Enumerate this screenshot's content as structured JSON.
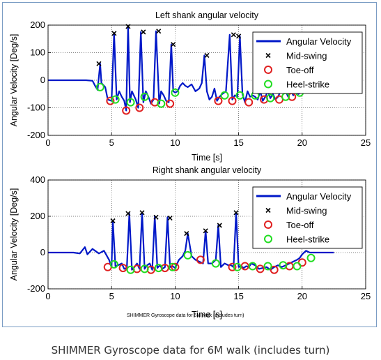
{
  "caption": "SHIMMER Gyroscope data for 6M walk (includes turn)",
  "inner_caption": "SHIMMER Gyroscope data for 6M walk (includes turn)",
  "colors": {
    "line": "#0018c8",
    "midswing": "#000000",
    "toeoff": "#e02020",
    "heelstrike": "#20dd20"
  },
  "chart_data": [
    {
      "type": "line",
      "title": "Left shank angular velocity",
      "xlabel": "Time [s]",
      "ylabel": "Angular Velocity [Deg/s]",
      "xlim": [
        0,
        25
      ],
      "ylim": [
        -200,
        200
      ],
      "xticks": [
        "0",
        "5",
        "10",
        "15",
        "20",
        "25"
      ],
      "yticks": [
        "200",
        "100",
        "0",
        "-100",
        "-200"
      ],
      "xtick_values": [
        0,
        5,
        10,
        15,
        20,
        25
      ],
      "ytick_values": [
        200,
        100,
        0,
        -100,
        -200
      ],
      "grid": true,
      "legend_position": "top-right",
      "legend": [
        "Angular Velocity",
        "Mid-swing",
        "Toe-off",
        "Heel-strike"
      ],
      "series": [
        {
          "name": "Angular Velocity",
          "type": "line",
          "x": [
            0,
            1,
            2,
            3,
            3.5,
            3.7,
            3.9,
            4.1,
            4.2,
            4.5,
            4.7,
            5.0,
            5.2,
            5.4,
            5.6,
            5.8,
            6.0,
            6.15,
            6.3,
            6.45,
            6.6,
            6.9,
            7.1,
            7.3,
            7.5,
            7.7,
            7.9,
            8.1,
            8.3,
            8.5,
            8.75,
            8.9,
            9.1,
            9.3,
            9.5,
            9.7,
            9.85,
            10.0,
            10.2,
            10.4,
            10.6,
            10.8,
            11.0,
            11.3,
            11.6,
            11.9,
            12.1,
            12.3,
            12.5,
            12.7,
            12.9,
            13.1,
            13.3,
            13.5,
            13.7,
            14.0,
            14.3,
            14.5,
            14.7,
            14.9,
            15.1,
            15.3,
            15.5,
            15.7,
            15.9,
            16.1,
            16.3,
            16.5,
            16.7,
            16.9,
            17.1,
            17.3,
            17.5,
            17.7,
            17.9,
            18.1,
            18.3,
            18.5,
            18.7,
            18.9,
            19.1,
            19.3,
            19.5,
            19.7,
            19.9,
            20.1,
            20.5,
            21.0
          ],
          "y": [
            0,
            0,
            0,
            0,
            -2,
            -20,
            -35,
            60,
            -10,
            -25,
            -70,
            -75,
            170,
            -70,
            -40,
            -60,
            -75,
            -110,
            195,
            -80,
            -40,
            -70,
            -100,
            175,
            -80,
            -40,
            -60,
            -85,
            -70,
            178,
            -85,
            -40,
            -55,
            -75,
            -80,
            130,
            -40,
            -45,
            -40,
            -20,
            -10,
            -20,
            -25,
            -15,
            -40,
            -30,
            -10,
            90,
            -40,
            -70,
            -60,
            -30,
            -75,
            -60,
            -50,
            -40,
            165,
            -70,
            -55,
            -60,
            160,
            -50,
            -80,
            -40,
            -60,
            -55,
            -60,
            -70,
            -40,
            -75,
            -60,
            -40,
            -65,
            -50,
            -70,
            -60,
            -40,
            -45,
            -40,
            -60,
            -35,
            -55,
            -40,
            -50,
            -45,
            -40,
            -10,
            0
          ]
        },
        {
          "name": "Mid-swing",
          "type": "marker",
          "marker": "x",
          "x": [
            4.0,
            5.2,
            6.3,
            7.5,
            8.7,
            9.85,
            12.5,
            14.6,
            15.0
          ],
          "y": [
            60,
            170,
            195,
            175,
            178,
            130,
            90,
            165,
            160
          ]
        },
        {
          "name": "Toe-off",
          "type": "marker",
          "marker": "circle",
          "x": [
            4.9,
            6.15,
            7.2,
            8.4,
            9.6,
            13.4,
            14.5,
            15.8,
            17.0,
            18.2,
            19.2
          ],
          "y": [
            -75,
            -110,
            -100,
            -80,
            -85,
            -75,
            -75,
            -80,
            -70,
            -70,
            -60
          ]
        },
        {
          "name": "Heel-strike",
          "type": "marker",
          "marker": "circle",
          "x": [
            4.1,
            5.3,
            6.5,
            7.6,
            8.9,
            10.0,
            13.9,
            15.1,
            16.3,
            17.5,
            18.7,
            19.8
          ],
          "y": [
            -25,
            -70,
            -80,
            -60,
            -85,
            -45,
            -55,
            -55,
            -55,
            -65,
            -60,
            -45
          ]
        }
      ]
    },
    {
      "type": "line",
      "title": "Right shank angular velocity",
      "xlabel": "Time [s]",
      "ylabel": "Angular Velocity [Deg/s]",
      "xlim": [
        0,
        25
      ],
      "ylim": [
        -200,
        400
      ],
      "xticks": [
        "0",
        "5",
        "10",
        "15",
        "20",
        "25"
      ],
      "yticks": [
        "400",
        "200",
        "0",
        "-200"
      ],
      "xtick_values": [
        0,
        5,
        10,
        15,
        20,
        25
      ],
      "ytick_values": [
        400,
        200,
        0,
        -200
      ],
      "grid": true,
      "legend_position": "top-right",
      "legend": [
        "Angular Velocity",
        "Mid-swing",
        "Toe-off",
        "Heel-strike"
      ],
      "series": [
        {
          "name": "Angular Velocity",
          "type": "line",
          "x": [
            0,
            1,
            2,
            2.5,
            2.9,
            3.1,
            3.5,
            4.0,
            4.4,
            4.8,
            5.0,
            5.1,
            5.3,
            5.5,
            5.8,
            6.0,
            6.2,
            6.4,
            6.6,
            6.8,
            7.0,
            7.2,
            7.4,
            7.6,
            7.8,
            8.0,
            8.2,
            8.4,
            8.6,
            8.8,
            9.0,
            9.2,
            9.4,
            9.6,
            9.8,
            10.0,
            10.3,
            10.6,
            10.8,
            11.0,
            11.3,
            11.6,
            11.9,
            12.2,
            12.4,
            12.6,
            12.9,
            13.2,
            13.4,
            13.6,
            13.9,
            14.2,
            14.4,
            14.6,
            14.8,
            15.0,
            15.2,
            15.4,
            15.6,
            15.8,
            16.0,
            16.3,
            16.6,
            16.9,
            17.2,
            17.5,
            17.8,
            18.1,
            18.4,
            18.7,
            19.0,
            19.3,
            19.6,
            19.8,
            20.0,
            20.3,
            20.6,
            21.0,
            21.5,
            22.0,
            22.5
          ],
          "y": [
            0,
            0,
            0,
            -5,
            30,
            -10,
            20,
            -5,
            10,
            -40,
            -80,
            175,
            -75,
            -70,
            -60,
            -90,
            -85,
            215,
            -95,
            -80,
            -60,
            -90,
            220,
            -90,
            -70,
            -60,
            -95,
            200,
            -85,
            -70,
            -90,
            -80,
            195,
            -80,
            -75,
            -85,
            -40,
            -20,
            10,
            105,
            -20,
            -40,
            -50,
            -60,
            120,
            -60,
            -60,
            -40,
            150,
            -80,
            -60,
            -70,
            -70,
            -80,
            220,
            -80,
            -75,
            -85,
            -75,
            -80,
            -60,
            -70,
            -90,
            -85,
            -80,
            -95,
            -80,
            -70,
            -80,
            -70,
            -60,
            -50,
            -40,
            -30,
            -10,
            10,
            0,
            0,
            0,
            0,
            0
          ]
        },
        {
          "name": "Mid-swing",
          "type": "marker",
          "marker": "x",
          "x": [
            5.1,
            6.3,
            7.4,
            8.5,
            9.6,
            10.9,
            12.4,
            13.5,
            14.8
          ],
          "y": [
            175,
            215,
            220,
            195,
            190,
            105,
            120,
            150,
            220
          ]
        },
        {
          "name": "Toe-off",
          "type": "marker",
          "marker": "circle",
          "x": [
            4.7,
            5.9,
            7.0,
            8.1,
            9.2,
            10.0,
            12.0,
            14.5,
            15.5,
            16.7,
            17.8,
            19.0,
            20.0
          ],
          "y": [
            -80,
            -85,
            -90,
            -95,
            -85,
            -80,
            -40,
            -80,
            -75,
            -90,
            -95,
            -75,
            -55
          ]
        },
        {
          "name": "Heel-strike",
          "type": "marker",
          "marker": "circle",
          "x": [
            5.2,
            6.5,
            7.6,
            8.7,
            9.8,
            11.0,
            13.2,
            14.9,
            16.1,
            17.3,
            18.5,
            19.6,
            20.7
          ],
          "y": [
            -65,
            -95,
            -90,
            -85,
            -80,
            -15,
            -60,
            -80,
            -75,
            -75,
            -70,
            -75,
            -30
          ]
        }
      ]
    }
  ]
}
